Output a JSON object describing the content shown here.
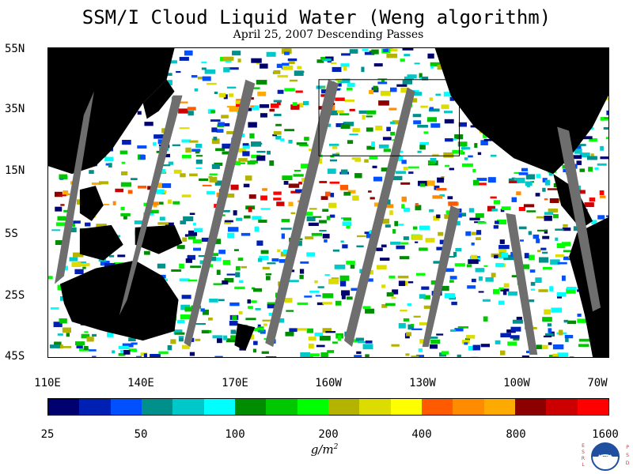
{
  "title": "SSM/I Cloud Liquid Water (Weng algorithm)",
  "subtitle": "April 25, 2007  Descending Passes",
  "lat_labels": [
    "55N",
    "35N",
    "15N",
    "5S",
    "25S",
    "45S"
  ],
  "lon_labels": [
    "110E",
    "140E",
    "170E",
    "160W",
    "130W",
    "100W",
    "70W"
  ],
  "colorbar": {
    "colors": [
      "#00006e",
      "#0020b4",
      "#0050ff",
      "#00908c",
      "#00c8c8",
      "#00ffff",
      "#008c00",
      "#00c800",
      "#00ff00",
      "#b4b400",
      "#dcdc00",
      "#ffff00",
      "#ff5a00",
      "#ff8c00",
      "#ffaa00",
      "#8c0000",
      "#cc0000",
      "#ff0000"
    ],
    "labels": [
      "25",
      "50",
      "100",
      "200",
      "400",
      "800",
      "1600"
    ]
  },
  "units": "g/m",
  "units_sup": "2",
  "legend_colors": {
    "land": "#000000",
    "no_data": "#6e6e6e",
    "water": "#ffffff",
    "box": "#000000"
  },
  "logo": {
    "text_left": "ESRL",
    "text_right": "PSD",
    "badge": "NOAA"
  }
}
